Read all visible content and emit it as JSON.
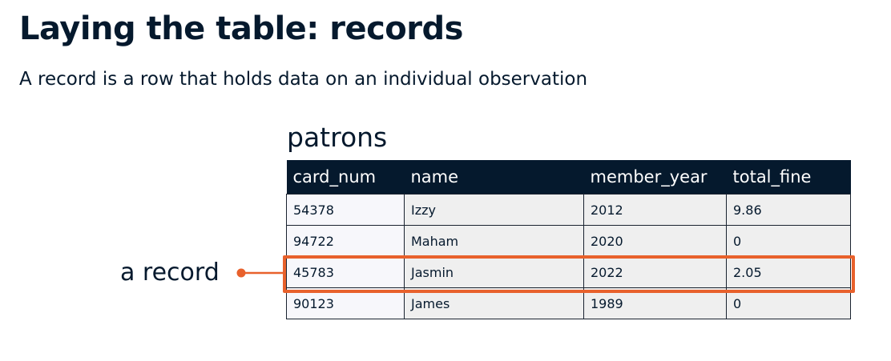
{
  "heading": "Laying the table: records",
  "description": "A record is a row that holds data on an individual observation",
  "table": {
    "name": "patrons",
    "columns": [
      "card_num",
      "name",
      "member_year",
      "total_fine"
    ],
    "rows": [
      [
        "54378",
        "Izzy",
        "2012",
        "9.86"
      ],
      [
        "94722",
        "Maham",
        "2020",
        "0"
      ],
      [
        "45783",
        "Jasmin",
        "2022",
        "2.05"
      ],
      [
        "90123",
        "James",
        "1989",
        "0"
      ]
    ]
  },
  "annotation": {
    "label": "a record",
    "highlighted_row": 3,
    "color": "#e8612c"
  },
  "colors": {
    "header_bg": "#05192d",
    "text": "#05192d",
    "accent": "#e8612c"
  }
}
